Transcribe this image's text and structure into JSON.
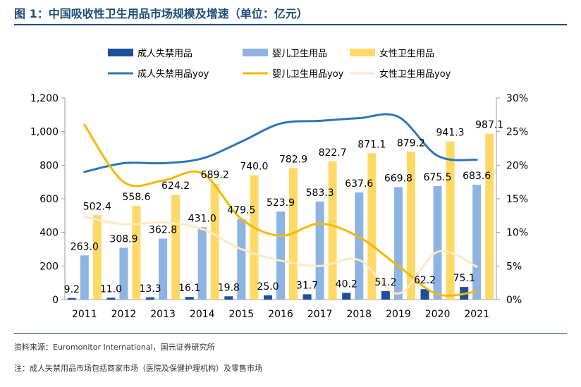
{
  "page": {
    "title": "图 1：中国吸收性卫生用品市场规模及增速（单位：亿元）",
    "source": "资料来源：Euromonitor International，国元证券研究所",
    "note": "注：成人失禁用品市场包括商家市场（医院及保健护理机构）及零售市场"
  },
  "chart_data": {
    "type": "bar",
    "categories": [
      "2011",
      "2012",
      "2013",
      "2014",
      "2015",
      "2016",
      "2017",
      "2018",
      "2019",
      "2020",
      "2021"
    ],
    "series": [
      {
        "name": "成人失禁用品",
        "kind": "bar",
        "axis": "left",
        "color": "#1f4e9a",
        "values": [
          9.2,
          11.0,
          13.3,
          16.1,
          19.8,
          25.0,
          31.7,
          40.2,
          51.2,
          62.2,
          75.1
        ]
      },
      {
        "name": "婴儿卫生用品",
        "kind": "bar",
        "axis": "left",
        "color": "#8db4e2",
        "values": [
          263.0,
          308.9,
          362.8,
          431.0,
          479.5,
          523.9,
          583.3,
          637.6,
          669.8,
          675.5,
          683.6
        ]
      },
      {
        "name": "女性卫生用品",
        "kind": "bar",
        "axis": "left",
        "color": "#ffd966",
        "values": [
          502.4,
          558.6,
          624.2,
          689.2,
          740.0,
          782.9,
          822.7,
          871.1,
          879.2,
          941.3,
          987.1
        ]
      },
      {
        "name": "成人失禁用品yoy",
        "kind": "line",
        "axis": "right",
        "color": "#2e75b6",
        "values": [
          19.0,
          20.3,
          20.3,
          21.0,
          23.5,
          26.2,
          26.6,
          27.0,
          27.2,
          21.4,
          20.8
        ]
      },
      {
        "name": "婴儿卫生用品yoy",
        "kind": "line",
        "axis": "right",
        "color": "#f5b800",
        "values": [
          26.0,
          17.5,
          17.7,
          18.8,
          12.0,
          9.5,
          11.3,
          9.3,
          5.0,
          0.8,
          1.2
        ]
      },
      {
        "name": "女性卫生用品yoy",
        "kind": "line",
        "axis": "right",
        "color": "#fde9c2",
        "values": [
          12.3,
          11.2,
          11.5,
          10.5,
          7.5,
          5.8,
          5.0,
          5.9,
          0.9,
          7.1,
          4.9
        ]
      }
    ],
    "y_left": {
      "ylim": [
        0,
        1200
      ],
      "ticks": [
        "0",
        "200",
        "400",
        "600",
        "800",
        "1,000",
        "1,200"
      ]
    },
    "y_right": {
      "ylim": [
        0,
        30
      ],
      "ticks": [
        "0%",
        "5%",
        "10%",
        "15%",
        "20%",
        "25%",
        "30%"
      ]
    },
    "legend": "top",
    "grid": false
  }
}
